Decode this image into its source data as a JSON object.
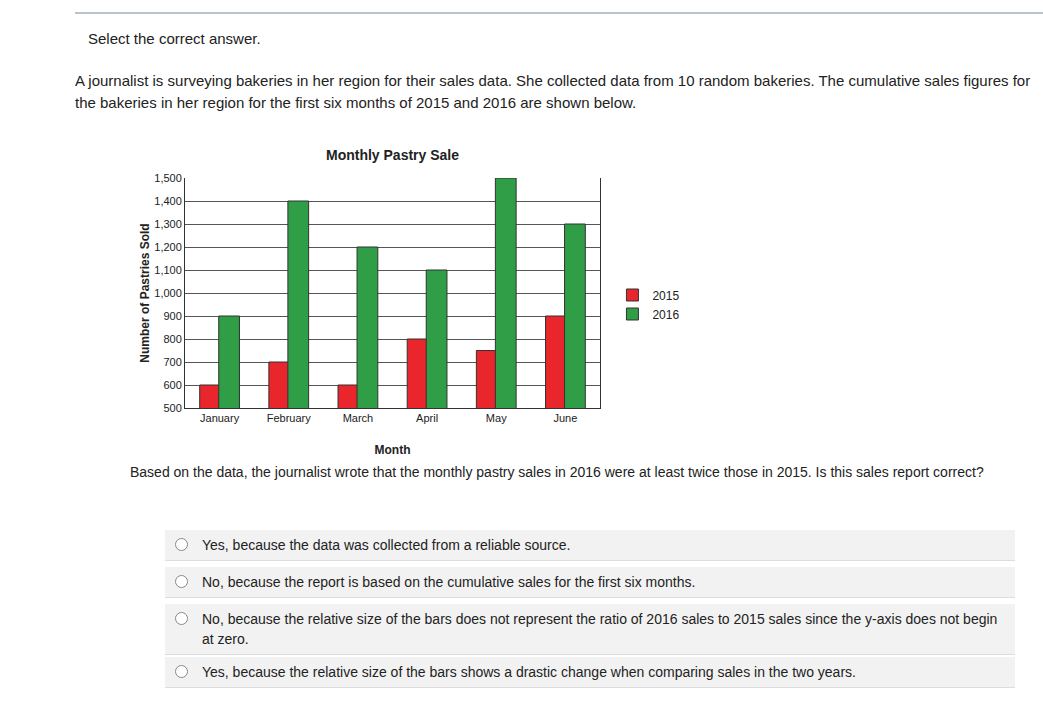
{
  "instruction": "Select the correct answer.",
  "intro": "A journalist is surveying bakeries in her region for their sales data. She collected data from 10 random bakeries. The cumulative sales figures for the bakeries in her region for the first six months of 2015 and 2016 are shown below.",
  "chart_data": {
    "type": "bar",
    "title": "Monthly Pastry Sale",
    "x_label": "Month",
    "y_label": "Number of Pastries Sold",
    "categories": [
      "January",
      "February",
      "March",
      "April",
      "May",
      "June"
    ],
    "series": [
      {
        "name": "2015",
        "color": "#e8262b",
        "values": [
          600,
          700,
          600,
          800,
          750,
          900
        ]
      },
      {
        "name": "2016",
        "color": "#2f9e47",
        "values": [
          900,
          1400,
          1200,
          1100,
          1500,
          1300
        ]
      }
    ],
    "ylim": [
      500,
      1500
    ],
    "yticks": [
      500,
      600,
      700,
      800,
      900,
      {
        "value": 1000,
        "label": "1,000"
      },
      {
        "value": 1100,
        "label": "1,100"
      },
      {
        "value": 1200,
        "label": "1,200"
      },
      {
        "value": 1300,
        "label": "1,300"
      },
      {
        "value": 1400,
        "label": "1,400"
      },
      {
        "value": 1500,
        "label": "1,500"
      }
    ],
    "grid": true,
    "legend": "right"
  },
  "question": "Based on the data, the journalist wrote that the monthly pastry sales in 2016 were at least twice those in 2015. Is this sales report correct?",
  "options": [
    "Yes, because the data was collected from a reliable source.",
    "No, because the report is based on the cumulative sales for the first six months.",
    "No, because the relative size of the bars does not represent the ratio of 2016 sales to 2015 sales since the y-axis does not begin at zero.",
    "Yes, because the relative size of the bars shows a drastic change when comparing sales in the two years."
  ]
}
